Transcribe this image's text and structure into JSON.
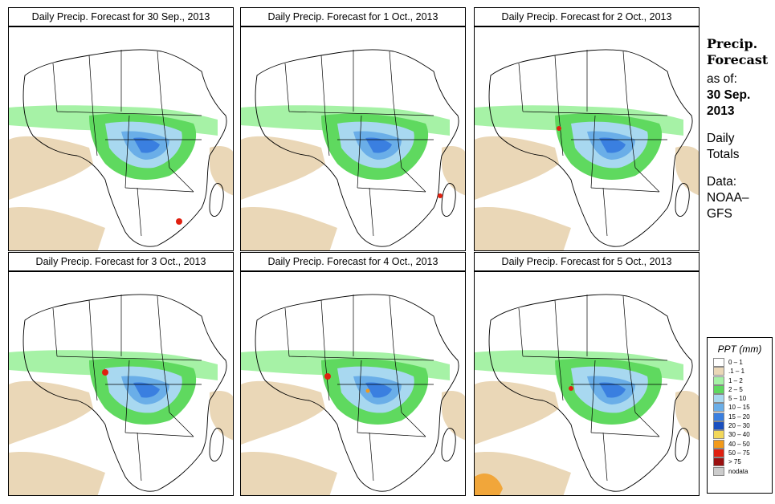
{
  "panels": [
    {
      "title": "Daily Precip. Forecast for  30 Sep., 2013"
    },
    {
      "title": "Daily Precip. Forecast for  1 Oct., 2013"
    },
    {
      "title": "Daily Precip. Forecast for  2 Oct., 2013"
    },
    {
      "title": "Daily Precip. Forecast for  3 Oct., 2013"
    },
    {
      "title": "Daily Precip. Forecast for  4 Oct., 2013"
    },
    {
      "title": "Daily Precip. Forecast for  5 Oct., 2013"
    }
  ],
  "sidebar": {
    "heading1": "Precip.",
    "heading2": "Forecast",
    "asof_label": "as of:",
    "date1": "30 Sep.",
    "date2": "2013",
    "totals1": "Daily",
    "totals2": "Totals",
    "data_label": "Data:",
    "data_src1": "NOAA–",
    "data_src2": "GFS"
  },
  "legend": {
    "title": "PPT (mm)",
    "items": [
      {
        "label": "0 – 1",
        "color": "#ffffff"
      },
      {
        "label": ".1 – 1",
        "color": "#ead7b7"
      },
      {
        "label": "1 – 2",
        "color": "#a6f2a6"
      },
      {
        "label": "2 – 5",
        "color": "#5fd95f"
      },
      {
        "label": "5 – 10",
        "color": "#a8d8f0"
      },
      {
        "label": "10 – 15",
        "color": "#6aaee8"
      },
      {
        "label": "15 – 20",
        "color": "#3a7fe0"
      },
      {
        "label": "20 – 30",
        "color": "#1a4fbf"
      },
      {
        "label": "30 – 40",
        "color": "#f2d75a"
      },
      {
        "label": "40 – 50",
        "color": "#f29a1a"
      },
      {
        "label": "50 – 75",
        "color": "#e02010"
      },
      {
        "label": "> 75",
        "color": "#9a1010"
      },
      {
        "label": "nodata",
        "color": "#cccccc"
      }
    ]
  }
}
